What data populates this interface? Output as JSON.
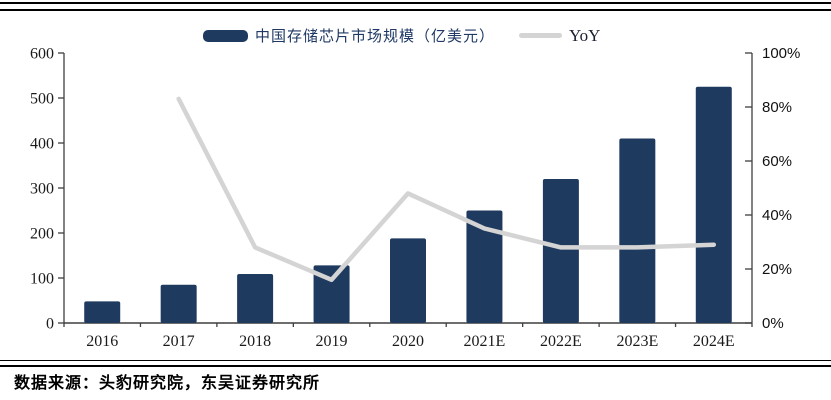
{
  "page": {
    "source_note": "数据来源：头豹研究院，东吴证券研究所"
  },
  "legend": {
    "bar_label": "中国存储芯片市场规模（亿美元）",
    "line_label": "YoY"
  },
  "colors": {
    "bar": "#1f3a5f",
    "line": "#d4d4d4",
    "axis": "#3f3f3f",
    "left_label_text": "#1a1a1a",
    "right_label_text": "#111111",
    "legend_text": "#1f3864"
  },
  "chart_data": {
    "type": "bar",
    "categories": [
      "2016",
      "2017",
      "2018",
      "2019",
      "2020",
      "2021E",
      "2022E",
      "2023E",
      "2024E"
    ],
    "series": [
      {
        "name": "中国存储芯片市场规模（亿美元）",
        "type": "bar",
        "axis": "left",
        "values": [
          48,
          85,
          109,
          128,
          188,
          250,
          320,
          410,
          525
        ]
      },
      {
        "name": "YoY",
        "type": "line",
        "axis": "right",
        "unit": "%",
        "values": [
          null,
          83,
          28,
          16,
          48,
          35,
          28,
          28,
          29
        ]
      }
    ],
    "left_axis": {
      "min": 0,
      "max": 600,
      "step": 100,
      "ticks": [
        "0",
        "100",
        "200",
        "300",
        "400",
        "500",
        "600"
      ]
    },
    "right_axis": {
      "min": 0,
      "max": 100,
      "step": 20,
      "ticks": [
        "0%",
        "20%",
        "40%",
        "60%",
        "80%",
        "100%"
      ]
    },
    "grid": false,
    "legend_position": "top"
  }
}
